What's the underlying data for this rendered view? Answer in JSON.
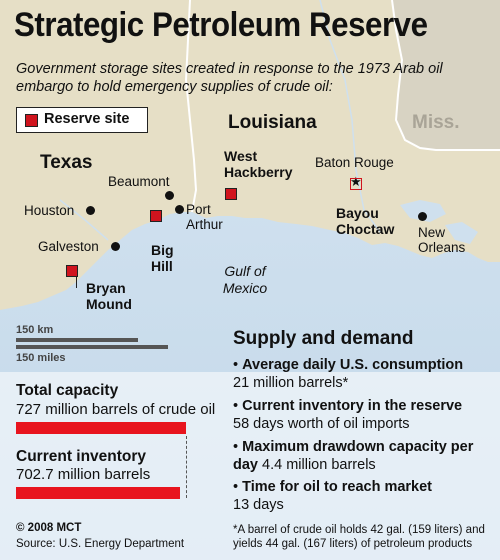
{
  "title": "Strategic Petroleum Reserve",
  "subtitle": "Government storage sites created in response to the 1973 Arab oil embargo to hold emergency supplies of crude oil:",
  "legend": {
    "label": "Reserve site"
  },
  "states": {
    "texas": "Texas",
    "louisiana": "Louisiana",
    "miss": "Miss."
  },
  "cities": {
    "beaumont": "Beaumont",
    "houston": "Houston",
    "port_arthur": "Port Arthur",
    "galveston": "Galveston",
    "baton_rouge": "Baton Rouge",
    "new_orleans": "New Orleans"
  },
  "sites": {
    "west_hackberry": "West Hackberry",
    "big_hill": "Big Hill",
    "bryan_mound": "Bryan Mound",
    "bayou_choctaw": "Bayou Choctaw"
  },
  "gulf": "Gulf of Mexico",
  "scale": {
    "km": "150 km",
    "miles": "150 miles"
  },
  "capacity": {
    "total_label": "Total capacity",
    "total_value": "727 million barrels of crude oil",
    "total_mbbl": 727,
    "current_label": "Current inventory",
    "current_value": "702.7 million barrels",
    "current_mbbl": 702.7
  },
  "supply": {
    "title": "Supply and demand",
    "items": [
      {
        "head": "Average daily U.S. consumption",
        "value": "21 million barrels*"
      },
      {
        "head": "Current inventory in the reserve",
        "value": "58 days worth of oil imports"
      },
      {
        "head": "Maximum drawdown capacity per day",
        "value": "4.4 million barrels"
      },
      {
        "head": "Time for oil to reach market",
        "value": "13 days"
      }
    ]
  },
  "footnote": "*A barrel of crude oil holds 42 gal. (159 liters) and yields 44 gal. (167 liters) of petroleum products",
  "copyright": "© 2008 MCT",
  "source": "Source: U.S. Energy Department",
  "colors": {
    "land": "#e6dfc6",
    "water": "#cfe0ee",
    "accent": "#d0141e",
    "bar": "#e8141e"
  }
}
